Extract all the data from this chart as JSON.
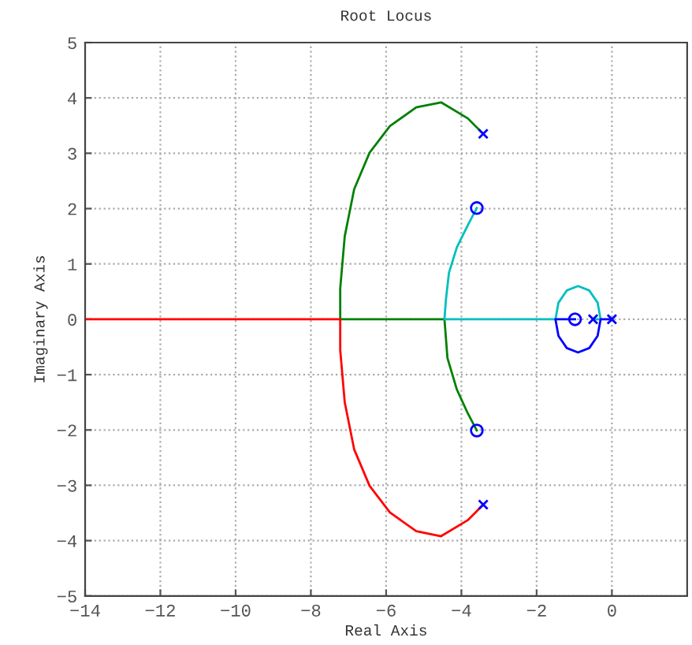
{
  "chart_data": {
    "type": "line",
    "title": "Root Locus",
    "xlabel": "Real Axis",
    "ylabel": "Imaginary Axis",
    "xlim": [
      -14,
      2
    ],
    "ylim": [
      -5,
      5
    ],
    "xticks": [
      -14,
      -12,
      -10,
      -8,
      -6,
      -4,
      -2,
      0
    ],
    "yticks": [
      -5,
      -4,
      -3,
      -2,
      -1,
      0,
      1,
      2,
      3,
      4,
      5
    ],
    "grid": true,
    "legend": false,
    "series": [
      {
        "color": "#008000",
        "x": [
          -3.42,
          -3.83,
          -4.54,
          -5.2,
          -5.9,
          -6.44,
          -6.85,
          -7.1,
          -7.22,
          -7.22,
          -4.45,
          -4.37,
          -4.12,
          -3.83,
          -3.59
        ],
        "values": [
          3.35,
          3.63,
          3.92,
          3.83,
          3.49,
          3.01,
          2.35,
          1.5,
          0.56,
          0,
          0,
          -0.7,
          -1.27,
          -1.7,
          -2.01
        ]
      },
      {
        "color": "#ff0000",
        "x": [
          -3.42,
          -3.83,
          -4.54,
          -5.2,
          -5.9,
          -6.44,
          -6.85,
          -7.1,
          -7.22,
          -7.22,
          -14
        ],
        "values": [
          -3.35,
          -3.63,
          -3.92,
          -3.83,
          -3.49,
          -3.01,
          -2.35,
          -1.5,
          -0.56,
          0,
          0
        ]
      },
      {
        "color": "#00bfbf",
        "x": [
          -0.5,
          -0.3,
          -0.38,
          -0.6,
          -0.9,
          -1.2,
          -1.42,
          -1.5,
          -4.45,
          -4.41,
          -4.33,
          -4.12,
          -3.83,
          -3.59
        ],
        "values": [
          0,
          0,
          0.3,
          0.52,
          0.6,
          0.52,
          0.3,
          0,
          0,
          0.36,
          0.84,
          1.3,
          1.7,
          2.01
        ]
      },
      {
        "color": "#0000ff",
        "x": [
          0,
          -0.3,
          -0.38,
          -0.6,
          -0.9,
          -1.2,
          -1.42,
          -1.5,
          -0.98
        ],
        "values": [
          0,
          0,
          -0.3,
          -0.52,
          -0.6,
          -0.52,
          -0.3,
          0,
          0
        ]
      },
      {
        "type": "scatter",
        "marker": "cross",
        "color": "#0000ff",
        "x": [
          -3.42,
          -3.42,
          -0.5,
          0
        ],
        "values": [
          3.35,
          -3.35,
          0,
          0
        ]
      },
      {
        "type": "scatter",
        "marker": "circle",
        "color": "#0000ff",
        "x": [
          -3.59,
          -3.59,
          -0.98
        ],
        "values": [
          2.01,
          -2.01,
          0
        ]
      }
    ]
  }
}
